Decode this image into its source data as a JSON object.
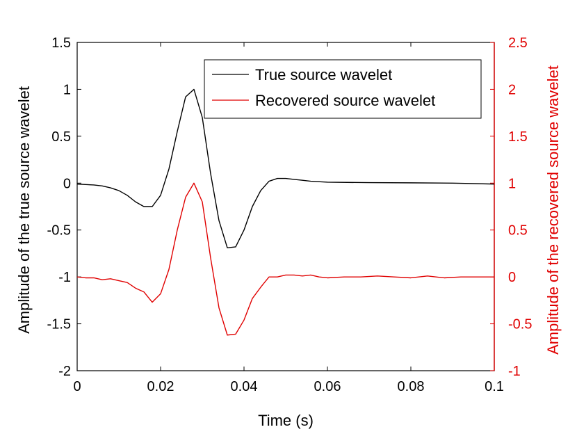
{
  "chart_data": {
    "type": "line",
    "xlabel": "Time (s)",
    "ylabel_left": "Amplitude of the true source wavelet",
    "ylabel_right": "Amplitude of the recovered source wavelet",
    "xlim": [
      0,
      0.1
    ],
    "ylim_left": [
      -2,
      1.5
    ],
    "ylim_right": [
      -1,
      2.5
    ],
    "xticks": [
      0,
      0.02,
      0.04,
      0.06,
      0.08,
      0.1
    ],
    "xtick_labels": [
      "0",
      "0.02",
      "0.04",
      "0.06",
      "0.08",
      "0.1"
    ],
    "yticks_left": [
      -2,
      -1.5,
      -1,
      -0.5,
      0,
      0.5,
      1,
      1.5
    ],
    "ytick_labels_left": [
      "-2",
      "-1.5",
      "-1",
      "-0.5",
      "0",
      "0.5",
      "1",
      "1.5"
    ],
    "yticks_right": [
      -1,
      -0.5,
      0,
      0.5,
      1,
      1.5,
      2,
      2.5
    ],
    "ytick_labels_right": [
      "-1",
      "-0.5",
      "0",
      "0.5",
      "1",
      "1.5",
      "2",
      "2.5"
    ],
    "grid": false,
    "legend_position": "top-right",
    "colors": {
      "left_axis": "#000000",
      "right_axis": "#e00000"
    },
    "series": [
      {
        "name": "True source wavelet",
        "axis": "left",
        "color": "#000000",
        "x": [
          0,
          0.002,
          0.004,
          0.006,
          0.008,
          0.01,
          0.012,
          0.014,
          0.016,
          0.018,
          0.02,
          0.022,
          0.024,
          0.026,
          0.028,
          0.03,
          0.032,
          0.034,
          0.036,
          0.038,
          0.04,
          0.042,
          0.044,
          0.046,
          0.048,
          0.05,
          0.052,
          0.054,
          0.056,
          0.06,
          0.07,
          0.08,
          0.09,
          0.1
        ],
        "y": [
          -0.01,
          -0.015,
          -0.02,
          -0.03,
          -0.05,
          -0.08,
          -0.13,
          -0.2,
          -0.25,
          -0.25,
          -0.13,
          0.15,
          0.55,
          0.92,
          1.0,
          0.7,
          0.1,
          -0.4,
          -0.69,
          -0.68,
          -0.5,
          -0.25,
          -0.08,
          0.02,
          0.05,
          0.05,
          0.04,
          0.03,
          0.02,
          0.01,
          0.005,
          0.003,
          0.0,
          -0.01
        ]
      },
      {
        "name": "Recovered source wavelet",
        "axis": "right",
        "color": "#e00000",
        "x": [
          0,
          0.002,
          0.004,
          0.006,
          0.008,
          0.01,
          0.012,
          0.014,
          0.016,
          0.018,
          0.02,
          0.022,
          0.024,
          0.026,
          0.028,
          0.03,
          0.032,
          0.034,
          0.036,
          0.038,
          0.04,
          0.042,
          0.044,
          0.046,
          0.048,
          0.05,
          0.052,
          0.054,
          0.056,
          0.058,
          0.06,
          0.064,
          0.068,
          0.072,
          0.076,
          0.08,
          0.084,
          0.088,
          0.092,
          0.096,
          0.1
        ],
        "y": [
          0.0,
          -0.01,
          -0.01,
          -0.03,
          -0.02,
          -0.04,
          -0.06,
          -0.12,
          -0.16,
          -0.27,
          -0.18,
          0.08,
          0.5,
          0.85,
          1.0,
          0.8,
          0.2,
          -0.33,
          -0.62,
          -0.61,
          -0.46,
          -0.23,
          -0.11,
          0.0,
          0.0,
          0.02,
          0.02,
          0.01,
          0.02,
          0.0,
          -0.01,
          0.0,
          0.0,
          0.01,
          0.0,
          -0.01,
          0.01,
          -0.01,
          0.0,
          0.0,
          0.0
        ]
      }
    ]
  }
}
